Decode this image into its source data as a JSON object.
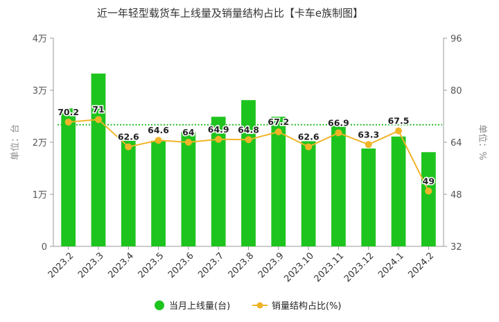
{
  "chart_data": {
    "type": "bar+line",
    "title": "近一年轻型载货车上线量及销量结构占比【卡车e族制图】",
    "categories": [
      "2023.2",
      "2023.3",
      "2023.4",
      "2023.5",
      "2023.6",
      "2023.7",
      "2023.8",
      "2023.9",
      "2023.10",
      "2023.11",
      "2023.12",
      "2024.1",
      "2024.2"
    ],
    "y_left": {
      "label": "单位：台",
      "ticks": [
        {
          "value": 0,
          "label": "0"
        },
        {
          "value": 10000,
          "label": "1万"
        },
        {
          "value": 20000,
          "label": "2万"
        },
        {
          "value": 30000,
          "label": "3万"
        },
        {
          "value": 40000,
          "label": "4万"
        }
      ],
      "range": [
        0,
        40000
      ]
    },
    "y_right": {
      "label": "单位：%",
      "ticks": [
        {
          "value": 32,
          "label": "32"
        },
        {
          "value": 48,
          "label": "48"
        },
        {
          "value": 64,
          "label": "64"
        },
        {
          "value": 80,
          "label": "80"
        },
        {
          "value": 96,
          "label": "96"
        }
      ],
      "range": [
        32,
        96
      ]
    },
    "series": [
      {
        "name": "当月上线量(台)",
        "kind": "bar",
        "axis": "left",
        "color": "#1ec41e",
        "values": [
          26500,
          33200,
          20300,
          20300,
          22000,
          24900,
          28100,
          24900,
          20200,
          23300,
          18800,
          21100,
          18100
        ]
      },
      {
        "name": "销量结构占比(%)",
        "kind": "line",
        "axis": "right",
        "color": "#f0b428",
        "values": [
          70.2,
          71,
          62.6,
          64.6,
          64,
          64.9,
          64.8,
          67.2,
          62.6,
          66.9,
          63.3,
          67.5,
          49
        ],
        "labels": [
          "70.2",
          "71",
          "62.6",
          "64.6",
          "64",
          "64.9",
          "64.8",
          "67.2",
          "62.6",
          "66.9",
          "63.3",
          "67.5",
          "49"
        ]
      }
    ],
    "reference_line": {
      "axis": "right",
      "value": 69.4,
      "color": "#22bb22",
      "style": "dotted"
    },
    "grid": false,
    "legend_position": "bottom"
  }
}
